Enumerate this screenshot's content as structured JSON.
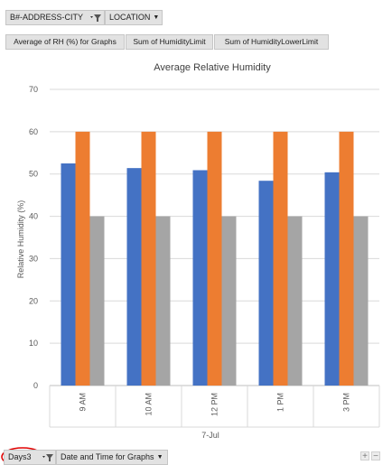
{
  "filter_fields": [
    {
      "label": "B#-ADDRESS-CITY",
      "icon": "filter-dropdown-icon"
    },
    {
      "label": "LOCATION",
      "icon": "dropdown-arrow-icon"
    }
  ],
  "value_fields": [
    "Average of RH (%) for Graphs",
    "Sum of HumidityLimit",
    "Sum of HumidityLowerLimit"
  ],
  "axis_fields": [
    {
      "label": "Days3",
      "icon": "filter-dropdown-icon",
      "highlighted": true
    },
    {
      "label": "Date and Time for Graphs",
      "icon": "dropdown-arrow-icon"
    }
  ],
  "zoom": {
    "plus": "+",
    "minus": "−"
  },
  "colors": {
    "series_1": "#4472c4",
    "series_2": "#ed7d31",
    "series_3": "#a5a5a5",
    "highlight_circle": "#e00000",
    "gridline": "#d9d9d9"
  },
  "chart_data": {
    "type": "bar",
    "title": "Average Relative Humidity",
    "xlabel": "",
    "ylabel": "Relative Humidity (%)",
    "group_label": "7-Jul",
    "categories": [
      "9 AM",
      "10 AM",
      "12 PM",
      "1 PM",
      "3 PM"
    ],
    "series": [
      {
        "values": [
          52.5,
          51.4,
          50.9,
          48.4,
          50.4
        ]
      },
      {
        "values": [
          60,
          60,
          60,
          60,
          60
        ]
      },
      {
        "values": [
          40,
          40,
          40,
          40,
          40
        ]
      }
    ],
    "ylim": [
      0,
      70
    ],
    "yticks": [
      0,
      10,
      20,
      30,
      40,
      50,
      60,
      70
    ],
    "grid": true,
    "legend": "none"
  }
}
